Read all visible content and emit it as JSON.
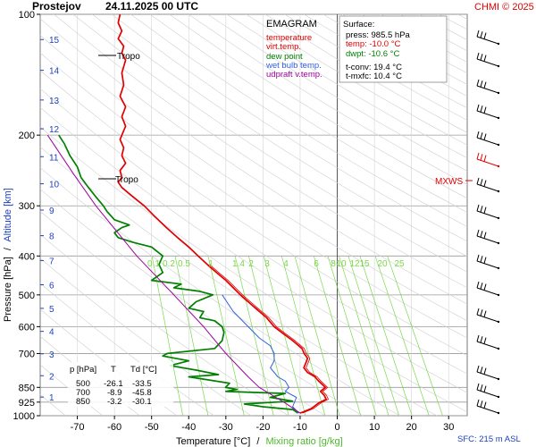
{
  "header": {
    "station": "Prostejov",
    "datetime": "24.11.2025 00 UTC",
    "credit": "CHMI © 2025"
  },
  "legend": {
    "title": "EMAGRAM",
    "items": [
      {
        "label": "temperature",
        "color": "#e00000"
      },
      {
        "label": "virt.temp.",
        "color": "#e00000"
      },
      {
        "label": "dew point",
        "color": "#008000"
      },
      {
        "label": "wet bulb temp.",
        "color": "#3060e0"
      },
      {
        "label": "udpraft v.temp.",
        "color": "#a000a0"
      }
    ]
  },
  "surface": {
    "title": "Surface:",
    "press": "press: 985.5 hPa",
    "temp": "temp: -10.0 °C",
    "dwpt": "dwpt: -10.6 °C",
    "tconv": "t-conv: 19.4 °C",
    "tmxfc": "t-mxfc: 10.4 °C"
  },
  "table": {
    "headers": [
      "p [hPa]",
      "T",
      "Td [°C]"
    ],
    "rows": [
      [
        "500",
        "-26.1",
        "-33.5"
      ],
      [
        "700",
        "-8.9",
        "-45.8"
      ],
      [
        "850",
        "-3.2",
        "-30.1"
      ]
    ]
  },
  "labels": {
    "tropo": "Tropo",
    "mxws": "MXWS",
    "sfc": "SFC: 215 m ASL",
    "ylabel_pressure": "Pressure [hPa]",
    "ylabel_slash": "/",
    "ylabel_altitude": "Altitude [km]",
    "xlabel_temp": "Temperature [°C]",
    "xlabel_slash": "/",
    "xlabel_mix": "Mixing ratio [g/kg]"
  },
  "colors": {
    "temperature": "#e00000",
    "dewpoint": "#008000",
    "wetbulb": "#3060e0",
    "updraft": "#a000a0",
    "mixing": "#7ad84a",
    "altitude": "#2040c0",
    "grid": "#999999"
  },
  "chart_data": {
    "type": "line",
    "title": "Prostejov 24.11.2025 00 UTC",
    "xlabel": "Temperature [°C] / Mixing ratio [g/kg]",
    "ylabel": "Pressure [hPa] / Altitude [km]",
    "xlim": [
      -80,
      35
    ],
    "ylim": [
      1000,
      100
    ],
    "yscale": "log",
    "x_ticks": [
      -70,
      -60,
      -50,
      -40,
      -30,
      -20,
      -10,
      0,
      10,
      20,
      30
    ],
    "y_ticks": [
      100,
      200,
      300,
      400,
      500,
      600,
      700,
      850,
      925,
      1000
    ],
    "altitude_ticks_km": [
      1,
      2,
      3,
      4,
      5,
      6,
      7,
      8,
      9,
      10,
      11,
      12,
      13,
      14,
      15
    ],
    "mixing_ratio_labels": [
      "0.1",
      "0.2",
      "0.5",
      "1",
      "1.4",
      "2",
      "3",
      "4",
      "6",
      "8",
      "10",
      "12",
      "15",
      "20",
      "25"
    ],
    "series": [
      {
        "name": "temperature",
        "points": [
          [
            985,
            -10
          ],
          [
            960,
            -7
          ],
          [
            930,
            -5
          ],
          [
            910,
            -3
          ],
          [
            890,
            -3.5
          ],
          [
            870,
            -4.5
          ],
          [
            850,
            -3.2
          ],
          [
            820,
            -5
          ],
          [
            800,
            -6
          ],
          [
            780,
            -8
          ],
          [
            760,
            -9
          ],
          [
            740,
            -8.5
          ],
          [
            720,
            -8
          ],
          [
            700,
            -8.9
          ],
          [
            680,
            -9.5
          ],
          [
            650,
            -12
          ],
          [
            620,
            -15
          ],
          [
            600,
            -17
          ],
          [
            570,
            -19
          ],
          [
            540,
            -22
          ],
          [
            520,
            -24
          ],
          [
            500,
            -26.1
          ],
          [
            480,
            -28
          ],
          [
            460,
            -30
          ],
          [
            440,
            -32.5
          ],
          [
            420,
            -35
          ],
          [
            400,
            -37.5
          ],
          [
            380,
            -40
          ],
          [
            360,
            -43
          ],
          [
            340,
            -46
          ],
          [
            320,
            -49
          ],
          [
            300,
            -52
          ],
          [
            290,
            -54
          ],
          [
            280,
            -56
          ],
          [
            270,
            -58
          ],
          [
            262,
            -59
          ],
          [
            255,
            -58
          ],
          [
            245,
            -58.5
          ],
          [
            235,
            -57
          ],
          [
            225,
            -58
          ],
          [
            215,
            -57.5
          ],
          [
            205,
            -58.5
          ],
          [
            200,
            -58
          ],
          [
            190,
            -57
          ],
          [
            180,
            -58
          ],
          [
            170,
            -57
          ],
          [
            160,
            -58.5
          ],
          [
            150,
            -57.5
          ],
          [
            140,
            -58
          ],
          [
            130,
            -57
          ],
          [
            125,
            -58
          ],
          [
            120,
            -57.5
          ],
          [
            115,
            -59
          ],
          [
            110,
            -58
          ],
          [
            105,
            -59
          ],
          [
            100,
            -58.5
          ]
        ]
      },
      {
        "name": "dew point",
        "points": [
          [
            985,
            -10.6
          ],
          [
            965,
            -12
          ],
          [
            950,
            -20
          ],
          [
            935,
            -25
          ],
          [
            920,
            -12
          ],
          [
            900,
            -18
          ],
          [
            880,
            -14
          ],
          [
            870,
            -30
          ],
          [
            860,
            -27
          ],
          [
            850,
            -30.1
          ],
          [
            830,
            -29
          ],
          [
            800,
            -40
          ],
          [
            790,
            -32
          ],
          [
            770,
            -38
          ],
          [
            750,
            -45
          ],
          [
            730,
            -40
          ],
          [
            710,
            -47
          ],
          [
            700,
            -45.8
          ],
          [
            680,
            -33
          ],
          [
            650,
            -31
          ],
          [
            620,
            -30.5
          ],
          [
            600,
            -31
          ],
          [
            580,
            -33
          ],
          [
            570,
            -37
          ],
          [
            550,
            -36
          ],
          [
            540,
            -40
          ],
          [
            520,
            -38
          ],
          [
            500,
            -33.5
          ],
          [
            490,
            -37
          ],
          [
            480,
            -44
          ],
          [
            470,
            -42
          ],
          [
            460,
            -50
          ],
          [
            440,
            -47
          ],
          [
            420,
            -48
          ],
          [
            400,
            -47
          ],
          [
            380,
            -50
          ],
          [
            370,
            -55
          ],
          [
            360,
            -59
          ],
          [
            350,
            -60
          ],
          [
            340,
            -58
          ],
          [
            335,
            -56
          ],
          [
            325,
            -60
          ],
          [
            310,
            -62
          ],
          [
            300,
            -63
          ],
          [
            285,
            -65
          ],
          [
            270,
            -67
          ],
          [
            255,
            -69
          ],
          [
            240,
            -70
          ],
          [
            225,
            -72
          ],
          [
            210,
            -73.5
          ],
          [
            200,
            -75
          ]
        ]
      },
      {
        "name": "wet bulb temp.",
        "points": [
          [
            985,
            -10.3
          ],
          [
            950,
            -12
          ],
          [
            900,
            -11
          ],
          [
            870,
            -14
          ],
          [
            850,
            -13
          ],
          [
            820,
            -14
          ],
          [
            800,
            -16
          ],
          [
            760,
            -18
          ],
          [
            730,
            -17
          ],
          [
            700,
            -17
          ],
          [
            670,
            -18
          ],
          [
            640,
            -21
          ],
          [
            600,
            -24
          ],
          [
            550,
            -28
          ],
          [
            500,
            -31
          ]
        ]
      },
      {
        "name": "udpraft v.temp.",
        "points": [
          [
            985,
            -10
          ],
          [
            930,
            -14
          ],
          [
            850,
            -21
          ],
          [
            800,
            -24
          ],
          [
            700,
            -30
          ],
          [
            600,
            -36
          ],
          [
            500,
            -44
          ],
          [
            400,
            -54
          ],
          [
            300,
            -65
          ],
          [
            250,
            -71
          ],
          [
            200,
            -78
          ]
        ]
      }
    ]
  }
}
